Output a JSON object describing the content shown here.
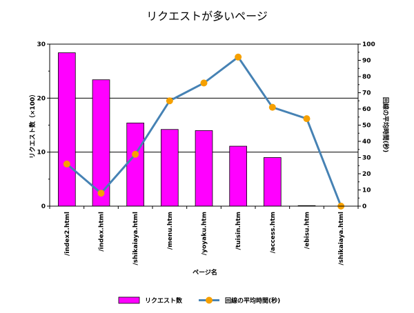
{
  "chart_data": {
    "type": "bar",
    "title": "リクエストが多いページ",
    "xlabel": "ページ名",
    "ylabel": "リクエスト数（×100）",
    "y2label": "回線の平均時間(秒)",
    "categories": [
      "/index2.html",
      "/index.html",
      "/shikaiaya.html",
      "/menu.htm",
      "/yoyaku.htm",
      "/tuisin.htm",
      "/access.htm",
      "/ebisu.htm",
      "/shikaiaya.html"
    ],
    "ylim": [
      0,
      30
    ],
    "y2lim": [
      0,
      100
    ],
    "yticks": [
      "0",
      "10",
      "20",
      "30"
    ],
    "y2ticks": [
      "0",
      "10",
      "20",
      "30",
      "40",
      "50",
      "60",
      "70",
      "80",
      "90",
      "100"
    ],
    "grid": true,
    "legend": "bottom",
    "series": [
      {
        "name": "リクエスト数",
        "type": "bar",
        "axis": "left",
        "color": "#ff00ff",
        "values": [
          28.4,
          23.4,
          15.4,
          14.2,
          14.0,
          11.1,
          9.0,
          0.1,
          0
        ]
      },
      {
        "name": "回線の平均時間(秒)",
        "type": "line",
        "axis": "right",
        "color": "#4682b4",
        "marker_color": "#f5a000",
        "values": [
          26,
          8,
          32,
          65,
          76,
          92,
          61,
          54,
          0
        ]
      }
    ]
  }
}
